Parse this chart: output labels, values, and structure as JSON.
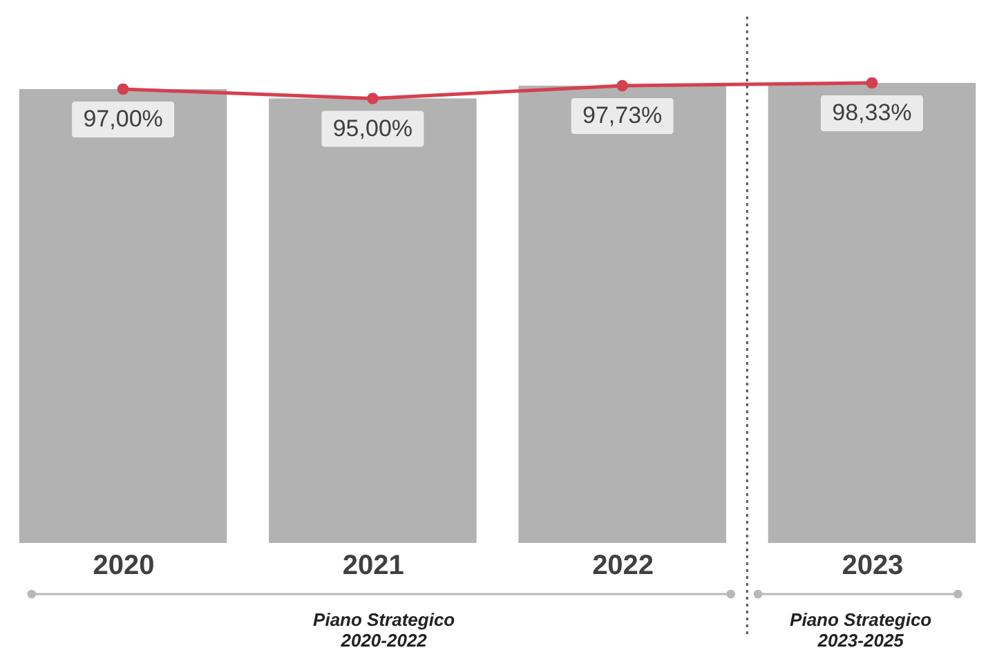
{
  "chart_data": {
    "type": "bar",
    "x": [
      2020,
      2021,
      2022,
      2023
    ],
    "xlim": [
      2019.59,
      2023.41
    ],
    "xticks": [
      2020,
      2021,
      2022,
      2023
    ],
    "tick_labels": "x",
    "series": [
      {
        "color": "#b2b2b2",
        "values": [
          97.0,
          95.0,
          97.73,
          98.33
        ]
      },
      {
        "type": "line",
        "color": "#d5404f",
        "marker": "circle",
        "values": [
          97.0,
          95.0,
          97.73,
          98.33
        ],
        "value_labels": [
          "97,00%",
          "95,00%",
          "97,73%",
          "98,33%"
        ]
      }
    ],
    "ref_lines": [
      {
        "axis": "x",
        "value": 2022.5,
        "line_style": "dotted",
        "color": "#555555"
      }
    ],
    "annotations": [
      "Piano Strategico\n2020-2022",
      "Piano Strategico\n2023-2025"
    ]
  }
}
